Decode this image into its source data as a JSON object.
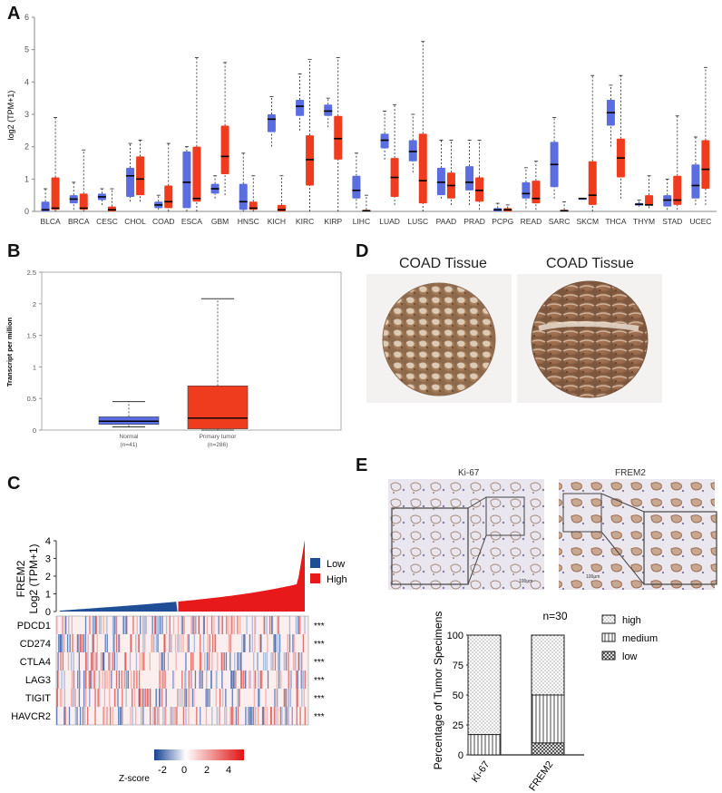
{
  "panels": {
    "A": "A",
    "B": "B",
    "C": "C",
    "D": "D",
    "E": "E"
  },
  "colors": {
    "normal": "#5b6ee1",
    "tumor": "#f03c1e",
    "low": "#1f4e96",
    "high": "#e8191b",
    "tissue": "#a6805e"
  },
  "chart_data": [
    {
      "id": "A",
      "type": "box",
      "title": "",
      "ylabel": "log2 (TPM+1)",
      "ylim": [
        0,
        6
      ],
      "yticks": [
        0,
        1,
        2,
        3,
        4,
        5,
        6
      ],
      "categories": [
        "BLCA",
        "BRCA",
        "CESC",
        "CHOL",
        "COAD",
        "ESCA",
        "GBM",
        "HNSC",
        "KICH",
        "KIRC",
        "KIRP",
        "LIHC",
        "LUAD",
        "LUSC",
        "PAAD",
        "PRAD",
        "PCPG",
        "READ",
        "SARC",
        "SKCM",
        "THCA",
        "THYM",
        "STAD",
        "UCEC"
      ],
      "series": [
        {
          "name": "Normal",
          "boxes": [
            [
              0,
              0,
              0.05,
              0.3,
              0.7
            ],
            [
              0.05,
              0.25,
              0.38,
              0.5,
              0.9
            ],
            [
              0.2,
              0.35,
              0.45,
              0.55,
              0.7
            ],
            [
              0.3,
              0.45,
              1.1,
              1.35,
              2.1
            ],
            [
              0.05,
              0.1,
              0.2,
              0.3,
              0.5
            ],
            [
              0,
              0.1,
              0.9,
              1.85,
              2.0
            ],
            [
              0.4,
              0.55,
              0.7,
              0.85,
              1.1
            ],
            [
              0,
              0.05,
              0.3,
              0.85,
              1.8
            ],
            [
              2.0,
              2.45,
              2.85,
              3.0,
              3.55
            ],
            [
              2.5,
              2.95,
              3.25,
              3.45,
              4.25
            ],
            [
              2.6,
              2.95,
              3.1,
              3.3,
              3.5
            ],
            [
              0.1,
              0.4,
              0.65,
              1.1,
              1.8
            ],
            [
              1.6,
              1.95,
              2.2,
              2.4,
              3.1
            ],
            [
              1.2,
              1.55,
              1.85,
              2.2,
              3.0
            ],
            [
              0.4,
              0.5,
              0.9,
              1.35,
              2.2
            ],
            [
              0.2,
              0.65,
              0.9,
              1.4,
              2.2
            ],
            [
              0,
              0,
              0.05,
              0.1,
              0.25
            ],
            [
              0.1,
              0.4,
              0.55,
              0.9,
              1.35
            ],
            [
              0.4,
              0.75,
              1.45,
              2.15,
              2.9
            ],
            [
              0.4,
              0.4,
              0.4,
              0.4,
              0.4
            ],
            [
              2.0,
              2.65,
              3.05,
              3.45,
              3.9
            ],
            [
              0.15,
              0.18,
              0.22,
              0.26,
              0.35
            ],
            [
              0.05,
              0.15,
              0.35,
              0.5,
              1.0
            ],
            [
              0.2,
              0.4,
              0.8,
              1.45,
              2.3
            ]
          ]
        },
        {
          "name": "Tumor",
          "boxes": [
            [
              0,
              0.05,
              0.1,
              1.05,
              2.9
            ],
            [
              0,
              0.05,
              0.1,
              0.55,
              1.9
            ],
            [
              0,
              0,
              0.05,
              0.15,
              0.7
            ],
            [
              0.3,
              0.5,
              1.0,
              1.7,
              2.2
            ],
            [
              0,
              0.1,
              0.3,
              0.8,
              2.1
            ],
            [
              0,
              0.3,
              0.4,
              2.0,
              4.75
            ],
            [
              0.5,
              1.15,
              1.7,
              2.65,
              4.6
            ],
            [
              0,
              0.05,
              0.1,
              0.3,
              1.1
            ],
            [
              0,
              0,
              0.05,
              0.2,
              1.1
            ],
            [
              0,
              0.8,
              1.6,
              2.35,
              4.7
            ],
            [
              0,
              1.6,
              2.25,
              2.95,
              4.75
            ],
            [
              0,
              0,
              0.02,
              0.05,
              0.5
            ],
            [
              0.2,
              0.45,
              1.05,
              1.65,
              3.3
            ],
            [
              0,
              0.25,
              0.95,
              2.4,
              5.25
            ],
            [
              0.2,
              0.4,
              0.8,
              1.2,
              2.2
            ],
            [
              0.05,
              0.3,
              0.65,
              1.05,
              2.2
            ],
            [
              0,
              0,
              0.05,
              0.1,
              0.2
            ],
            [
              0.05,
              0.25,
              0.4,
              0.95,
              1.55
            ],
            [
              0,
              0,
              0.02,
              0.05,
              0.3
            ],
            [
              0,
              0.2,
              0.5,
              1.55,
              4.2
            ],
            [
              0.4,
              1.05,
              1.65,
              2.25,
              4.2
            ],
            [
              0.1,
              0.2,
              0.2,
              0.5,
              1.1
            ],
            [
              0.05,
              0.2,
              0.35,
              1.1,
              2.95
            ],
            [
              0.2,
              0.7,
              1.3,
              2.2,
              4.45
            ]
          ]
        }
      ]
    },
    {
      "id": "B",
      "type": "box",
      "ylabel": "Transcript per million",
      "ylim": [
        0,
        2.5
      ],
      "yticks": [
        "0",
        "0.5",
        "1",
        "1.5",
        "2",
        "2.5"
      ],
      "categories": [
        "Normal",
        "Primary tumor"
      ],
      "sublabels": [
        "(n=41)",
        "(n=286)"
      ],
      "boxes": [
        [
          0.05,
          0.09,
          0.14,
          0.21,
          0.45
        ],
        [
          0,
          0.02,
          0.19,
          0.7,
          2.08
        ]
      ]
    },
    {
      "id": "C",
      "type": "area+heatmap",
      "ylabel_line1": "FREM2",
      "ylabel_line2": "Log2 (TPM+1)",
      "ylim": [
        0,
        4
      ],
      "yticks": [
        "0",
        "1",
        "2",
        "3",
        "4"
      ],
      "legend": [
        "Low",
        "High"
      ],
      "rows": [
        "PDCD1",
        "CD274",
        "CTLA4",
        "LAG3",
        "TIGIT",
        "HAVCR2"
      ],
      "significance": [
        "***",
        "***",
        "***",
        "***",
        "***",
        "***"
      ],
      "colorbar_label": "Z-score",
      "colorbar_ticks": [
        "-2",
        "0",
        "2",
        "4"
      ]
    },
    {
      "id": "E",
      "type": "stacked-bar",
      "title": "n=30",
      "ylabel": "Percentage of Tumor Specimens",
      "ylim": [
        0,
        100
      ],
      "yticks": [
        "0",
        "25",
        "50",
        "75",
        "100"
      ],
      "categories": [
        "Ki-67",
        "FREM2"
      ],
      "series": [
        {
          "name": "low",
          "values": [
            0,
            10
          ]
        },
        {
          "name": "medium",
          "values": [
            17,
            40
          ]
        },
        {
          "name": "high",
          "values": [
            83,
            50
          ]
        }
      ],
      "legend": [
        "high",
        "medium",
        "low"
      ]
    }
  ],
  "panelD": {
    "titles": [
      "COAD Tissue",
      "COAD Tissue"
    ]
  },
  "panelE": {
    "micro_titles": [
      "Ki-67",
      "FREM2"
    ],
    "scale": [
      "100μm",
      "100μm"
    ]
  }
}
